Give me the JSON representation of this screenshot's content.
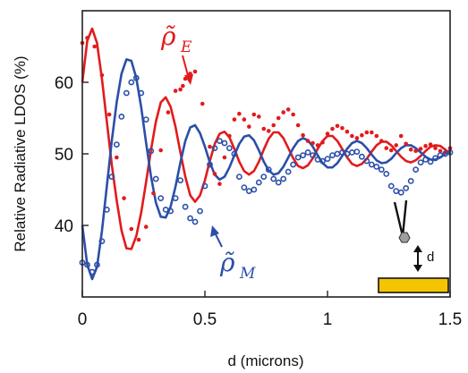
{
  "chart_data": {
    "type": "line",
    "title": "",
    "xlabel": "d (microns)",
    "ylabel": "Relative Radiative LDOS (%)",
    "xlim": [
      0,
      1.5
    ],
    "ylim": [
      30,
      70
    ],
    "grid": false,
    "x_ticks": [
      0,
      0.5,
      1,
      1.5
    ],
    "x_tick_labels": [
      "0",
      "0.5",
      "1",
      "1.5"
    ],
    "y_ticks": [
      40,
      50,
      60
    ],
    "y_tick_labels": [
      "40",
      "50",
      "60"
    ],
    "series": [
      {
        "style": "line",
        "color": "#e31a1c",
        "x": [
          0,
          0.02,
          0.04,
          0.06,
          0.08,
          0.1,
          0.12,
          0.14,
          0.16,
          0.18,
          0.2,
          0.22,
          0.24,
          0.26,
          0.28,
          0.3,
          0.32,
          0.34,
          0.36,
          0.38,
          0.4,
          0.42,
          0.44,
          0.46,
          0.48,
          0.5,
          0.52,
          0.54,
          0.56,
          0.58,
          0.6,
          0.62,
          0.64,
          0.66,
          0.68,
          0.7,
          0.72,
          0.74,
          0.76,
          0.78,
          0.8,
          0.82,
          0.84,
          0.86,
          0.88,
          0.9,
          0.92,
          0.94,
          0.96,
          0.98,
          1.0,
          1.02,
          1.04,
          1.06,
          1.08,
          1.1,
          1.12,
          1.14,
          1.16,
          1.18,
          1.2,
          1.22,
          1.24,
          1.26,
          1.28,
          1.3,
          1.32,
          1.34,
          1.36,
          1.38,
          1.4,
          1.42,
          1.44,
          1.46,
          1.48,
          1.5
        ],
        "y": [
          60.0,
          65.8,
          67.5,
          65.5,
          60.5,
          54.5,
          48.5,
          43.5,
          39.3,
          36.8,
          36.7,
          38.5,
          41.8,
          46.0,
          50.5,
          54.5,
          57.2,
          57.9,
          56.6,
          53.8,
          50.2,
          46.8,
          44.2,
          43.3,
          44.2,
          46.3,
          49.0,
          51.4,
          52.8,
          53.1,
          52.3,
          50.7,
          48.9,
          47.6,
          47.1,
          47.6,
          48.9,
          50.6,
          52.1,
          53.0,
          53.0,
          52.2,
          50.8,
          49.4,
          48.3,
          48.0,
          48.4,
          49.4,
          50.7,
          51.8,
          52.5,
          52.5,
          51.8,
          50.7,
          49.5,
          48.6,
          48.3,
          48.6,
          49.3,
          50.3,
          51.2,
          51.7,
          51.7,
          51.2,
          50.4,
          49.6,
          49.0,
          48.8,
          49.1,
          49.7,
          50.4,
          51.0,
          51.2,
          51.1,
          50.6,
          50.0
        ]
      },
      {
        "style": "line",
        "color": "#2b4fa8",
        "x": [
          0,
          0.02,
          0.04,
          0.06,
          0.08,
          0.1,
          0.12,
          0.14,
          0.16,
          0.18,
          0.2,
          0.22,
          0.24,
          0.26,
          0.28,
          0.3,
          0.32,
          0.34,
          0.36,
          0.38,
          0.4,
          0.42,
          0.44,
          0.46,
          0.48,
          0.5,
          0.52,
          0.54,
          0.56,
          0.58,
          0.6,
          0.62,
          0.64,
          0.66,
          0.68,
          0.7,
          0.72,
          0.74,
          0.76,
          0.78,
          0.8,
          0.82,
          0.84,
          0.86,
          0.88,
          0.9,
          0.92,
          0.94,
          0.96,
          0.98,
          1.0,
          1.02,
          1.04,
          1.06,
          1.08,
          1.1,
          1.12,
          1.14,
          1.16,
          1.18,
          1.2,
          1.22,
          1.24,
          1.26,
          1.28,
          1.3,
          1.32,
          1.34,
          1.36,
          1.38,
          1.4,
          1.42,
          1.44,
          1.46,
          1.48,
          1.5
        ],
        "y": [
          40.0,
          34.5,
          32.5,
          34.2,
          39.2,
          45.5,
          51.8,
          57.2,
          61.2,
          63.2,
          63.0,
          60.6,
          56.5,
          51.6,
          46.9,
          43.2,
          41.2,
          41.1,
          42.6,
          45.4,
          48.8,
          51.8,
          53.7,
          54.0,
          52.9,
          51.0,
          48.8,
          47.1,
          46.4,
          46.8,
          48.1,
          49.8,
          51.4,
          52.4,
          52.6,
          51.9,
          50.5,
          48.9,
          47.7,
          47.1,
          47.3,
          48.2,
          49.5,
          50.8,
          51.8,
          52.2,
          51.9,
          51.0,
          49.8,
          48.7,
          48.1,
          48.1,
          48.7,
          49.7,
          50.7,
          51.5,
          51.8,
          51.5,
          50.8,
          49.9,
          49.1,
          48.7,
          48.8,
          49.3,
          50.1,
          50.8,
          51.2,
          51.2,
          50.8,
          50.2,
          49.6,
          49.2,
          49.2,
          49.5,
          50.0,
          50.4
        ]
      },
      {
        "style": "markers",
        "marker": "dot",
        "color": "#e31a1c",
        "x": [
          0.0,
          0.02,
          0.05,
          0.08,
          0.11,
          0.14,
          0.17,
          0.2,
          0.23,
          0.26,
          0.29,
          0.32,
          0.35,
          0.38,
          0.4,
          0.41,
          0.42,
          0.44,
          0.46,
          0.49,
          0.52,
          0.54,
          0.56,
          0.58,
          0.6,
          0.62,
          0.64,
          0.66,
          0.68,
          0.7,
          0.72,
          0.74,
          0.76,
          0.78,
          0.8,
          0.82,
          0.84,
          0.86,
          0.88,
          0.9,
          0.92,
          0.94,
          0.96,
          0.98,
          1.0,
          1.02,
          1.04,
          1.06,
          1.08,
          1.1,
          1.12,
          1.14,
          1.16,
          1.18,
          1.2,
          1.22,
          1.24,
          1.26,
          1.28,
          1.3,
          1.32,
          1.34,
          1.36,
          1.38,
          1.4,
          1.42,
          1.44,
          1.46,
          1.48,
          1.5
        ],
        "y": [
          65.5,
          66.2,
          65.0,
          61.0,
          55.5,
          49.5,
          43.8,
          39.5,
          38.0,
          39.8,
          44.5,
          50.5,
          55.8,
          58.8,
          59.0,
          59.5,
          60.5,
          61.2,
          61.5,
          57.0,
          51.0,
          47.2,
          45.8,
          49.5,
          52.5,
          54.8,
          55.6,
          54.8,
          53.8,
          55.5,
          55.2,
          53.5,
          53.2,
          54.0,
          55.0,
          55.8,
          56.2,
          55.5,
          54.0,
          52.6,
          51.8,
          51.5,
          51.2,
          51.6,
          52.8,
          53.5,
          53.9,
          53.6,
          53.1,
          52.5,
          52.2,
          52.6,
          53.0,
          53.0,
          52.5,
          51.8,
          50.8,
          50.5,
          51.2,
          52.5,
          51.4,
          50.6,
          50.4,
          50.7,
          51.1,
          51.3,
          50.8,
          50.4,
          50.2,
          50.8
        ]
      },
      {
        "style": "markers",
        "marker": "open-circle",
        "color": "#2b4fa8",
        "x": [
          0.0,
          0.02,
          0.04,
          0.06,
          0.08,
          0.1,
          0.12,
          0.14,
          0.16,
          0.18,
          0.2,
          0.22,
          0.24,
          0.26,
          0.28,
          0.3,
          0.32,
          0.34,
          0.36,
          0.38,
          0.4,
          0.42,
          0.44,
          0.46,
          0.48,
          0.5,
          0.52,
          0.54,
          0.56,
          0.58,
          0.6,
          0.62,
          0.64,
          0.66,
          0.68,
          0.7,
          0.72,
          0.74,
          0.76,
          0.78,
          0.8,
          0.82,
          0.84,
          0.86,
          0.88,
          0.9,
          0.92,
          0.94,
          0.96,
          0.98,
          1.0,
          1.02,
          1.04,
          1.06,
          1.08,
          1.1,
          1.12,
          1.14,
          1.16,
          1.18,
          1.2,
          1.22,
          1.24,
          1.26,
          1.28,
          1.3,
          1.32,
          1.34,
          1.36,
          1.38,
          1.4,
          1.42,
          1.44,
          1.46,
          1.48,
          1.5
        ],
        "y": [
          34.8,
          34.5,
          33.5,
          34.5,
          37.8,
          42.2,
          46.8,
          51.3,
          55.2,
          58.5,
          60.0,
          60.6,
          58.5,
          54.8,
          50.4,
          46.5,
          43.8,
          42.2,
          42.0,
          43.8,
          46.3,
          42.6,
          41.0,
          40.5,
          42.0,
          45.5,
          48.5,
          50.8,
          51.8,
          51.5,
          50.8,
          50.0,
          46.8,
          45.3,
          44.8,
          45.0,
          46.0,
          46.8,
          47.8,
          46.5,
          46.0,
          46.5,
          47.5,
          48.5,
          49.5,
          49.8,
          50.2,
          49.8,
          49.2,
          49.0,
          49.3,
          49.8,
          50.0,
          50.2,
          50.0,
          50.2,
          50.3,
          49.6,
          49.0,
          48.5,
          48.2,
          47.8,
          47.2,
          45.5,
          44.8,
          44.6,
          45.2,
          46.2,
          47.8,
          48.8,
          49.2,
          48.9,
          49.4,
          49.8,
          50.0,
          50.2
        ]
      }
    ],
    "annotations": [
      {
        "text": "ρ̃",
        "subscript": "E",
        "color": "#e31a1c"
      },
      {
        "text": "ρ̃",
        "subscript": "M",
        "color": "#2b4fa8"
      },
      {
        "text": "d",
        "color": "#111111"
      }
    ]
  }
}
